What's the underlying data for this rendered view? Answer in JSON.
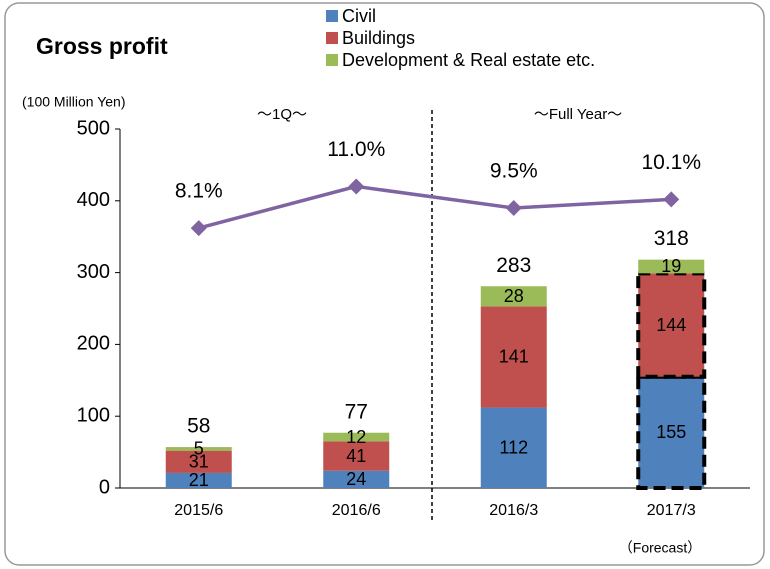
{
  "chart_data": {
    "type": "bar",
    "title": "Gross profit",
    "y_axis_label": "(100 Million Yen)",
    "annotations": [
      "～1Q～",
      "～Full Year～",
      "（Forecast）"
    ],
    "categories": [
      "2015/6",
      "2016/6",
      "2016/3",
      "2017/3"
    ],
    "series": [
      {
        "name": "Civil",
        "color": "#4f81bd",
        "values": [
          21,
          24,
          112,
          155
        ]
      },
      {
        "name": "Buildings",
        "color": "#c0504d",
        "values": [
          31,
          41,
          141,
          144
        ]
      },
      {
        "name": "Development & Real estate etc.",
        "color": "#9bbb59",
        "values": [
          5,
          12,
          28,
          19
        ]
      }
    ],
    "totals": [
      58,
      77,
      283,
      318
    ],
    "line": {
      "color": "#8064a2",
      "axis": "y2",
      "values": [
        8.1,
        11.0,
        9.5,
        10.1
      ],
      "value_labels": [
        "8.1%",
        "11.0%",
        "9.5%",
        "10.1%"
      ]
    },
    "ylim": [
      0,
      500
    ],
    "yticks": [
      0,
      100,
      200,
      300,
      400,
      500
    ],
    "y2lim": [
      -10,
      15
    ],
    "stacked": true,
    "grid": false,
    "legend": "top"
  }
}
